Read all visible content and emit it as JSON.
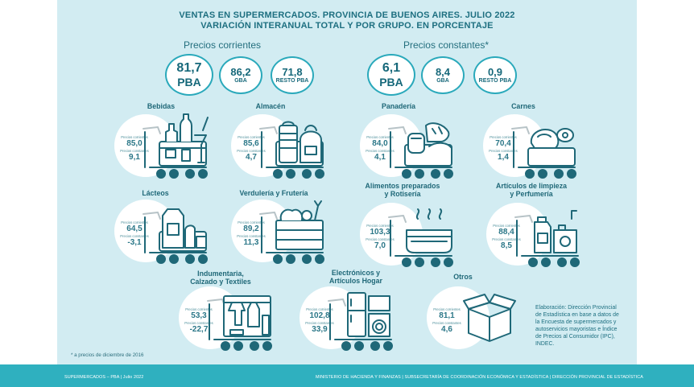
{
  "title_line1": "VENTAS EN SUPERMERCADOS. PROVINCIA DE BUENOS AIRES. JULIO 2022",
  "title_line2": "VARIACIÓN INTERANUAL TOTAL Y POR GRUPO. EN PORCENTAJE",
  "section_corrientes": "Precios corrientes",
  "section_constantes": "Precios constantes*",
  "label_corrientes": "Precios corrientes",
  "label_constantes": "Precios constantes",
  "totals": {
    "corrientes": [
      {
        "value": "81,7",
        "region": "PBA"
      },
      {
        "value": "86,2",
        "region": "GBA"
      },
      {
        "value": "71,8",
        "region": "RESTO PBA"
      }
    ],
    "constantes": [
      {
        "value": "6,1",
        "region": "PBA"
      },
      {
        "value": "8,4",
        "region": "GBA"
      },
      {
        "value": "0,9",
        "region": "RESTO PBA"
      }
    ]
  },
  "groups": [
    {
      "name": "Bebidas",
      "corrientes": "85,0",
      "constantes": "9,1"
    },
    {
      "name": "Almacén",
      "corrientes": "85,6",
      "constantes": "4,7"
    },
    {
      "name": "Panadería",
      "corrientes": "84,0",
      "constantes": "4,1"
    },
    {
      "name": "Carnes",
      "corrientes": "70,4",
      "constantes": "1,4"
    },
    {
      "name": "Lácteos",
      "corrientes": "64,5",
      "constantes": "-3,1"
    },
    {
      "name": "Verdulería y Frutería",
      "corrientes": "89,2",
      "constantes": "11,3"
    },
    {
      "name1": "Alimentos preparados",
      "name2": "y Rotisería",
      "corrientes": "103,3",
      "constantes": "7,0"
    },
    {
      "name1": "Artículos de limpieza",
      "name2": "y Perfumería",
      "corrientes": "88,4",
      "constantes": "8,5"
    },
    {
      "name1": "Indumentaria,",
      "name2": "Calzado y Textiles",
      "corrientes": "53,3",
      "constantes": "-22,7"
    },
    {
      "name1": "Electrónicos y",
      "name2": "Artículos Hogar",
      "corrientes": "102,8",
      "constantes": "33,9"
    },
    {
      "name": "Otros",
      "corrientes": "81,1",
      "constantes": "4,6"
    }
  ],
  "note": "* a precios de diciembre de 2016",
  "credit": "Elaboración: Dirección Provincial de Estadística en base a datos de la Encuesta de supermercados y autoservicios mayoristas e Índice de Precios al Consumidor (IPC), INDEC.",
  "footer_left": "SUPERMERCADOS – PBA | Julio 2022",
  "footer_right": "MINISTERIO DE HACIENDA Y FINANZAS | SUBSECRETARÍA DE COORDINACIÓN ECONÓMICA Y ESTADÍSTICA | DIRECCIÓN PROVINCIAL DE ESTADÍSTICA",
  "chart_data": {
    "type": "table",
    "title": "VENTAS EN SUPERMERCADOS. PROVINCIA DE BUENOS AIRES. JULIO 2022",
    "subtitle": "VARIACIÓN INTERANUAL TOTAL Y POR GRUPO. EN PORCENTAJE",
    "columns": [
      "Precios corrientes",
      "Precios constantes"
    ],
    "totals": [
      {
        "region": "PBA",
        "corrientes": 81.7,
        "constantes": 6.1
      },
      {
        "region": "GBA",
        "corrientes": 86.2,
        "constantes": 8.4
      },
      {
        "region": "RESTO PBA",
        "corrientes": 71.8,
        "constantes": 0.9
      }
    ],
    "categories": [
      "Bebidas",
      "Almacén",
      "Panadería",
      "Carnes",
      "Lácteos",
      "Verdulería y Frutería",
      "Alimentos preparados y Rotisería",
      "Artículos de limpieza y Perfumería",
      "Indumentaria, Calzado y Textiles",
      "Electrónicos y Artículos Hogar",
      "Otros"
    ],
    "series": [
      {
        "name": "Precios corrientes",
        "values": [
          85.0,
          85.6,
          84.0,
          70.4,
          64.5,
          89.2,
          103.3,
          88.4,
          53.3,
          102.8,
          81.1
        ]
      },
      {
        "name": "Precios constantes",
        "values": [
          9.1,
          4.7,
          4.1,
          1.4,
          -3.1,
          11.3,
          7.0,
          8.5,
          -22.7,
          33.9,
          4.6
        ]
      }
    ]
  }
}
